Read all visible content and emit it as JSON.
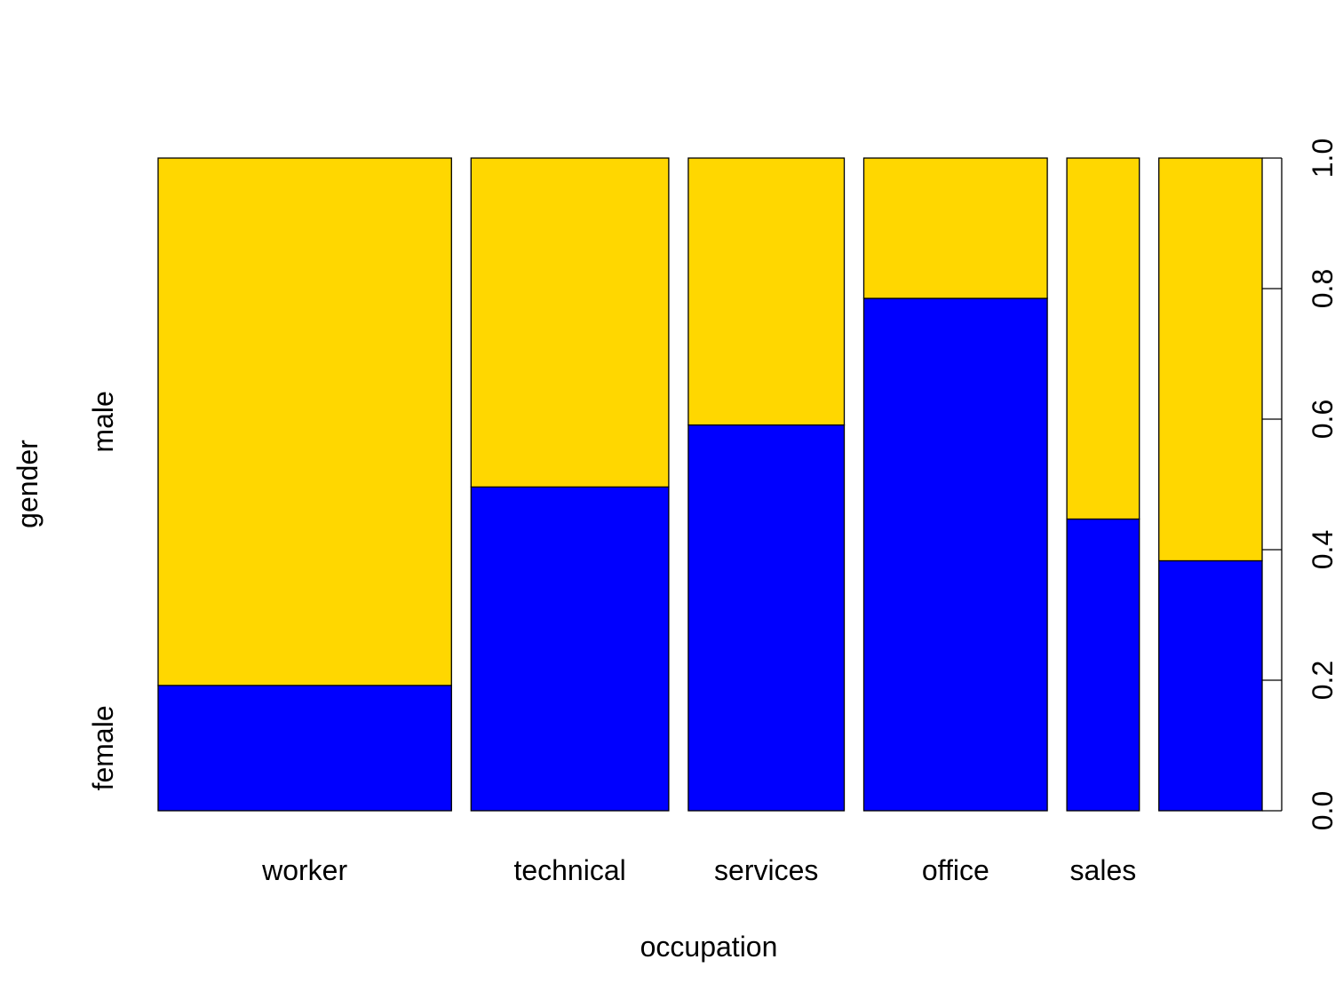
{
  "chart_data": {
    "type": "bar",
    "subtype": "spineplot",
    "xlabel": "occupation",
    "ylabel": "gender",
    "categories": [
      "worker",
      "technical",
      "services",
      "office",
      "sales",
      ""
    ],
    "widths": [
      0.267,
      0.18,
      0.142,
      0.167,
      0.066,
      0.094
    ],
    "series": [
      {
        "name": "female",
        "color": "#0000FF",
        "values": [
          0.192,
          0.496,
          0.591,
          0.785,
          0.447,
          0.383
        ]
      },
      {
        "name": "male",
        "color": "#FFD700",
        "values": [
          0.808,
          0.504,
          0.409,
          0.215,
          0.553,
          0.617
        ]
      }
    ],
    "y_axis": {
      "side": "right",
      "ylim": [
        0,
        1
      ],
      "ticks": [
        "0.0",
        "0.2",
        "0.4",
        "0.6",
        "0.8",
        "1.0"
      ]
    },
    "left_labels": [
      "female",
      "male"
    ],
    "grid": false,
    "legend": "none"
  }
}
